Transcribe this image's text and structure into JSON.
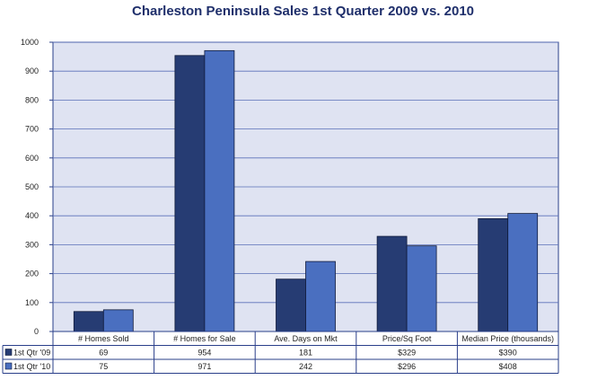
{
  "chart_data": {
    "type": "bar",
    "title": "Charleston Peninsula Sales 1st Quarter 2009 vs. 2010",
    "categories": [
      "# Homes Sold",
      "# Homes for Sale",
      "Ave. Days on Mkt",
      "Price/Sq Foot",
      "Median Price (thousands)"
    ],
    "series": [
      {
        "name": "1st Qtr '09",
        "values": [
          69,
          954,
          181,
          329,
          390
        ],
        "labels": [
          "69",
          "954",
          "181",
          "$329",
          "$390"
        ],
        "color": "#263c73"
      },
      {
        "name": "1st Qtr '10",
        "values": [
          75,
          971,
          242,
          296,
          408
        ],
        "labels": [
          "75",
          "971",
          "242",
          "$296",
          "$408"
        ],
        "color": "#4a6fc0"
      }
    ],
    "ylim": [
      0,
      1000
    ],
    "yticks": [
      0,
      100,
      200,
      300,
      400,
      500,
      600,
      700,
      800,
      900,
      1000
    ],
    "grid": true,
    "legend": "data-table",
    "plot_background": "#dfe3f2"
  }
}
